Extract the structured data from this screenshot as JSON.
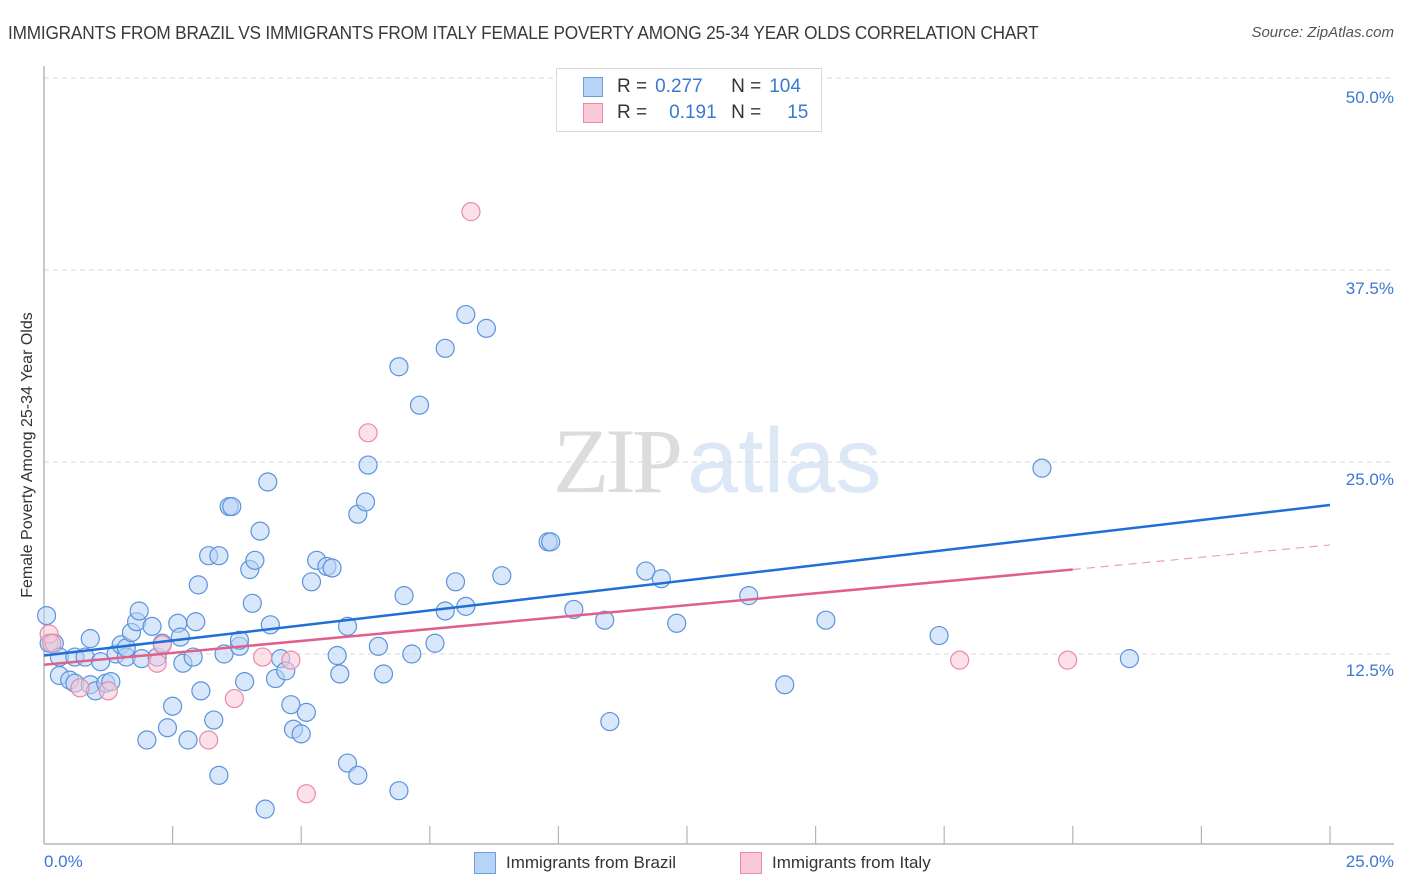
{
  "header": {
    "title": "IMMIGRANTS FROM BRAZIL VS IMMIGRANTS FROM ITALY FEMALE POVERTY AMONG 25-34 YEAR OLDS CORRELATION CHART",
    "source": "Source: ZipAtlas.com"
  },
  "watermark": {
    "zip": "ZIP",
    "atlas": "atlas"
  },
  "legend_box": {
    "rows": [
      {
        "r_label": "R =",
        "r_value": "0.277",
        "n_label": "N =",
        "n_value": "104",
        "color_fill": "#b8d3f5",
        "color_border": "#6a9ee0"
      },
      {
        "r_label": "R =",
        "r_value": "0.191",
        "n_label": "N =",
        "n_value": "15",
        "color_fill": "#f9c9d7",
        "color_border": "#ea8aa8"
      }
    ]
  },
  "axes": {
    "ylabel": "Female Poverty Among 25-34 Year Olds",
    "yticks": [
      "50.0%",
      "37.5%",
      "25.0%",
      "12.5%"
    ],
    "xtick_left": "0.0%",
    "xtick_right": "25.0%"
  },
  "bottom_legend": [
    {
      "label": "Immigrants from Brazil",
      "color_fill": "#b8d3f5",
      "color_border": "#6a9ee0"
    },
    {
      "label": "Immigrants from Italy",
      "color_fill": "#f9c9d7",
      "color_border": "#ea8aa8"
    }
  ],
  "colors": {
    "brazil_line": "#1f6fd6",
    "italy_line": "#e0608a",
    "axis_label": "#3b78d0",
    "grid": "#d9d9d9"
  },
  "chart_data": {
    "type": "scatter",
    "title": "IMMIGRANTS FROM BRAZIL VS IMMIGRANTS FROM ITALY FEMALE POVERTY AMONG 25-34 YEAR OLDS CORRELATION CHART",
    "xlabel": "",
    "ylabel": "Female Poverty Among 25-34 Year Olds",
    "xlim": [
      0,
      25
    ],
    "ylim": [
      0,
      50
    ],
    "x_unit": "%",
    "y_unit": "%",
    "yticks": [
      12.5,
      25.0,
      37.5,
      50.0
    ],
    "xticks_labeled": [
      0,
      25
    ],
    "grid": true,
    "legend_position": "bottom",
    "series": [
      {
        "name": "Immigrants from Brazil",
        "R": 0.277,
        "N": 104,
        "color": "#6a9ee0",
        "trend": {
          "x": [
            0,
            25
          ],
          "y": [
            12.4,
            22.2
          ]
        },
        "points": [
          [
            0.05,
            15.0
          ],
          [
            0.1,
            13.2
          ],
          [
            0.2,
            13.2
          ],
          [
            0.3,
            12.3
          ],
          [
            0.3,
            11.1
          ],
          [
            0.5,
            10.8
          ],
          [
            0.6,
            10.6
          ],
          [
            0.6,
            12.3
          ],
          [
            0.8,
            12.3
          ],
          [
            0.9,
            13.5
          ],
          [
            0.9,
            10.5
          ],
          [
            1.0,
            10.1
          ],
          [
            1.1,
            12.0
          ],
          [
            1.2,
            10.6
          ],
          [
            1.3,
            10.7
          ],
          [
            1.4,
            12.5
          ],
          [
            1.5,
            13.1
          ],
          [
            1.6,
            12.3
          ],
          [
            1.6,
            12.9
          ],
          [
            1.7,
            13.9
          ],
          [
            1.8,
            14.6
          ],
          [
            1.85,
            15.3
          ],
          [
            1.9,
            12.2
          ],
          [
            2.0,
            6.9
          ],
          [
            2.1,
            14.3
          ],
          [
            2.2,
            12.3
          ],
          [
            2.3,
            13.2
          ],
          [
            2.4,
            7.7
          ],
          [
            2.5,
            9.1
          ],
          [
            2.6,
            14.5
          ],
          [
            2.65,
            13.6
          ],
          [
            2.7,
            11.9
          ],
          [
            2.8,
            6.9
          ],
          [
            2.9,
            12.3
          ],
          [
            2.95,
            14.6
          ],
          [
            3.0,
            17.0
          ],
          [
            3.05,
            10.1
          ],
          [
            3.2,
            18.9
          ],
          [
            3.3,
            8.2
          ],
          [
            3.4,
            18.9
          ],
          [
            3.4,
            4.6
          ],
          [
            3.5,
            12.5
          ],
          [
            3.6,
            22.1
          ],
          [
            3.65,
            22.1
          ],
          [
            3.8,
            13.0
          ],
          [
            3.8,
            13.4
          ],
          [
            3.9,
            10.7
          ],
          [
            4.0,
            18.0
          ],
          [
            4.05,
            15.8
          ],
          [
            4.1,
            18.6
          ],
          [
            4.2,
            20.5
          ],
          [
            4.3,
            2.4
          ],
          [
            4.35,
            23.7
          ],
          [
            4.4,
            14.4
          ],
          [
            4.5,
            10.9
          ],
          [
            4.6,
            12.2
          ],
          [
            4.7,
            11.4
          ],
          [
            4.8,
            9.2
          ],
          [
            4.85,
            7.6
          ],
          [
            5.0,
            7.3
          ],
          [
            5.1,
            8.7
          ],
          [
            5.2,
            17.2
          ],
          [
            5.3,
            18.6
          ],
          [
            5.5,
            18.2
          ],
          [
            5.6,
            18.1
          ],
          [
            5.7,
            12.4
          ],
          [
            5.75,
            11.2
          ],
          [
            5.9,
            5.4
          ],
          [
            5.9,
            14.3
          ],
          [
            6.1,
            4.6
          ],
          [
            6.1,
            21.6
          ],
          [
            6.25,
            22.4
          ],
          [
            6.3,
            24.8
          ],
          [
            6.5,
            13.0
          ],
          [
            6.6,
            11.2
          ],
          [
            6.9,
            3.6
          ],
          [
            6.9,
            31.2
          ],
          [
            7.0,
            16.3
          ],
          [
            7.15,
            12.5
          ],
          [
            7.3,
            28.7
          ],
          [
            7.6,
            13.2
          ],
          [
            7.8,
            15.3
          ],
          [
            7.8,
            32.4
          ],
          [
            8.0,
            17.2
          ],
          [
            8.2,
            15.6
          ],
          [
            8.2,
            34.6
          ],
          [
            8.6,
            33.7
          ],
          [
            8.9,
            17.6
          ],
          [
            9.8,
            19.8
          ],
          [
            9.85,
            19.8
          ],
          [
            10.3,
            15.4
          ],
          [
            10.9,
            14.7
          ],
          [
            11.0,
            8.1
          ],
          [
            11.7,
            17.9
          ],
          [
            12.0,
            17.4
          ],
          [
            12.3,
            14.5
          ],
          [
            13.7,
            16.3
          ],
          [
            14.4,
            10.5
          ],
          [
            15.2,
            14.7
          ],
          [
            17.4,
            13.7
          ],
          [
            19.4,
            24.6
          ],
          [
            21.1,
            12.2
          ]
        ]
      },
      {
        "name": "Immigrants from Italy",
        "R": 0.191,
        "N": 15,
        "color": "#ea8aa8",
        "trend": {
          "x": [
            0,
            20
          ],
          "y": [
            11.8,
            18.0
          ],
          "dashed_extension": {
            "x": [
              20,
              25
            ],
            "y": [
              18.0,
              19.6
            ]
          }
        },
        "points": [
          [
            0.1,
            13.8
          ],
          [
            0.15,
            13.2
          ],
          [
            0.7,
            10.3
          ],
          [
            1.25,
            10.1
          ],
          [
            2.2,
            11.9
          ],
          [
            2.3,
            13.1
          ],
          [
            3.2,
            6.9
          ],
          [
            3.7,
            9.6
          ],
          [
            4.25,
            12.3
          ],
          [
            4.8,
            12.1
          ],
          [
            5.1,
            3.4
          ],
          [
            6.3,
            26.9
          ],
          [
            8.3,
            41.3
          ],
          [
            17.8,
            12.1
          ],
          [
            19.9,
            12.1
          ]
        ]
      }
    ]
  }
}
